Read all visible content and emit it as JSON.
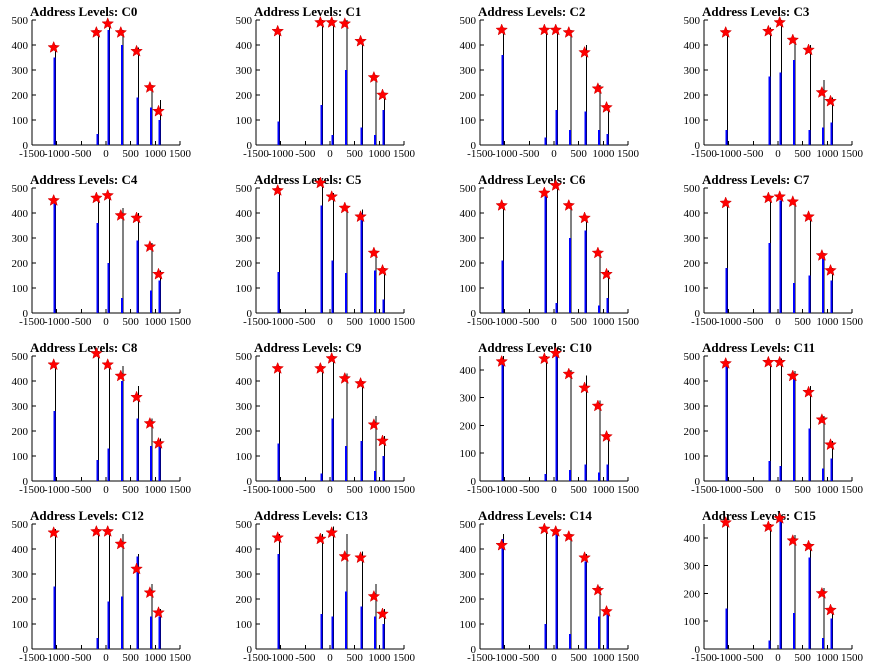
{
  "colors": {
    "histogram": "#000000",
    "fill": "#0000ff",
    "marker": "#ff0000"
  },
  "chart_data": [
    {
      "type": "bar",
      "title": "Address Levels: C0",
      "xlim": [
        -1500,
        1500
      ],
      "ylim": [
        0,
        500
      ],
      "xticks": [
        -1500,
        -1000,
        -500,
        0,
        500,
        1000,
        1500
      ],
      "xtick_labels": [
        "-1500",
        "-1000",
        "-500",
        "0",
        "500",
        "1000",
        "1500"
      ],
      "yticks": [
        0,
        100,
        200,
        300,
        400,
        500
      ],
      "x": [
        -1040,
        -175,
        55,
        320,
        640,
        910,
        1085
      ],
      "peak": [
        400,
        460,
        490,
        460,
        390,
        240,
        180
      ],
      "fill": [
        350,
        45,
        460,
        400,
        190,
        150,
        100
      ],
      "markers": [
        390,
        450,
        485,
        450,
        375,
        230,
        135
      ]
    },
    {
      "type": "bar",
      "title": "Address Levels: C1",
      "xlim": [
        -1500,
        1500
      ],
      "ylim": [
        0,
        500
      ],
      "xticks": [
        -1500,
        -1000,
        -500,
        0,
        500,
        1000,
        1500
      ],
      "xtick_labels": [
        "-1500",
        "-1000",
        "-500",
        "0",
        "500",
        "1000",
        "1500"
      ],
      "yticks": [
        0,
        100,
        200,
        300,
        400,
        500
      ],
      "x": [
        -1040,
        -175,
        55,
        320,
        640,
        910,
        1085
      ],
      "peak": [
        460,
        500,
        500,
        500,
        420,
        280,
        210
      ],
      "fill": [
        95,
        160,
        40,
        300,
        70,
        40,
        140
      ],
      "markers": [
        455,
        490,
        490,
        485,
        415,
        270,
        200
      ]
    },
    {
      "type": "bar",
      "title": "Address Levels: C2",
      "xlim": [
        -1500,
        1500
      ],
      "ylim": [
        0,
        500
      ],
      "xticks": [
        -1500,
        -1000,
        -500,
        0,
        500,
        1000,
        1500
      ],
      "xtick_labels": [
        "-1500",
        "-1000",
        "-500",
        "0",
        "500",
        "1000",
        "1500"
      ],
      "yticks": [
        0,
        100,
        200,
        300,
        400,
        500
      ],
      "x": [
        -1040,
        -175,
        55,
        320,
        640,
        910,
        1085
      ],
      "peak": [
        470,
        460,
        470,
        460,
        400,
        240,
        160
      ],
      "fill": [
        360,
        30,
        140,
        60,
        135,
        60,
        45
      ],
      "markers": [
        460,
        460,
        460,
        450,
        370,
        225,
        150
      ]
    },
    {
      "type": "bar",
      "title": "Address Levels: C3",
      "xlim": [
        -1500,
        1500
      ],
      "ylim": [
        0,
        500
      ],
      "xticks": [
        -1500,
        -1000,
        -500,
        0,
        500,
        1000,
        1500
      ],
      "xtick_labels": [
        "-1500",
        "-1000",
        "-500",
        "0",
        "500",
        "1000",
        "1500"
      ],
      "yticks": [
        0,
        100,
        200,
        300,
        400,
        500
      ],
      "x": [
        -1040,
        -175,
        55,
        320,
        640,
        910,
        1085
      ],
      "peak": [
        460,
        470,
        500,
        430,
        400,
        260,
        190
      ],
      "fill": [
        60,
        275,
        290,
        340,
        60,
        70,
        90
      ],
      "markers": [
        450,
        455,
        490,
        420,
        380,
        210,
        175
      ]
    },
    {
      "type": "bar",
      "title": "Address Levels: C4",
      "xlim": [
        -1500,
        1500
      ],
      "ylim": [
        0,
        500
      ],
      "xticks": [
        -1500,
        -1000,
        -500,
        0,
        500,
        1000,
        1500
      ],
      "xtick_labels": [
        "-1500",
        "-1000",
        "-500",
        "0",
        "500",
        "1000",
        "1500"
      ],
      "yticks": [
        0,
        100,
        200,
        300,
        400,
        500
      ],
      "x": [
        -1040,
        -175,
        55,
        320,
        640,
        910,
        1085
      ],
      "peak": [
        460,
        470,
        480,
        420,
        400,
        280,
        170
      ],
      "fill": [
        440,
        360,
        200,
        60,
        290,
        90,
        130
      ],
      "markers": [
        450,
        460,
        470,
        390,
        380,
        265,
        155
      ]
    },
    {
      "type": "bar",
      "title": "Address Levels: C5",
      "xlim": [
        -1500,
        1500
      ],
      "ylim": [
        0,
        500
      ],
      "xticks": [
        -1500,
        -1000,
        -500,
        0,
        500,
        1000,
        1500
      ],
      "xtick_labels": [
        "-1500",
        "-1000",
        "-500",
        "0",
        "500",
        "1000",
        "1500"
      ],
      "yticks": [
        0,
        100,
        200,
        300,
        400,
        500
      ],
      "x": [
        -1040,
        -175,
        55,
        320,
        640,
        910,
        1085
      ],
      "peak": [
        500,
        530,
        480,
        430,
        415,
        250,
        180
      ],
      "fill": [
        165,
        430,
        210,
        160,
        400,
        170,
        55
      ],
      "markers": [
        490,
        520,
        465,
        420,
        385,
        240,
        170
      ]
    },
    {
      "type": "bar",
      "title": "Address Levels: C6",
      "xlim": [
        -1500,
        1500
      ],
      "ylim": [
        0,
        500
      ],
      "xticks": [
        -1500,
        -1000,
        -500,
        0,
        500,
        1000,
        1500
      ],
      "xtick_labels": [
        "-1500",
        "-1000",
        "-500",
        "0",
        "500",
        "1000",
        "1500"
      ],
      "yticks": [
        0,
        100,
        200,
        300,
        400,
        500
      ],
      "x": [
        -1040,
        -175,
        55,
        320,
        640,
        910,
        1085
      ],
      "peak": [
        440,
        490,
        520,
        440,
        390,
        250,
        170
      ],
      "fill": [
        210,
        470,
        40,
        300,
        330,
        30,
        60
      ],
      "markers": [
        430,
        480,
        510,
        430,
        380,
        240,
        155
      ]
    },
    {
      "type": "bar",
      "title": "Address Levels: C7",
      "xlim": [
        -1500,
        1500
      ],
      "ylim": [
        0,
        500
      ],
      "xticks": [
        -1500,
        -1000,
        -500,
        0,
        500,
        1000,
        1500
      ],
      "xtick_labels": [
        "-1500",
        "-1000",
        "-500",
        "0",
        "500",
        "1000",
        "1500"
      ],
      "yticks": [
        0,
        100,
        200,
        300,
        400,
        500
      ],
      "x": [
        -1040,
        -175,
        55,
        320,
        640,
        910,
        1085
      ],
      "peak": [
        450,
        470,
        470,
        450,
        390,
        240,
        180
      ],
      "fill": [
        180,
        280,
        450,
        120,
        150,
        240,
        130
      ],
      "markers": [
        440,
        460,
        465,
        445,
        385,
        230,
        170
      ]
    },
    {
      "type": "bar",
      "title": "Address Levels: C8",
      "xlim": [
        -1500,
        1500
      ],
      "ylim": [
        0,
        500
      ],
      "xticks": [
        -1500,
        -1000,
        -500,
        0,
        500,
        1000,
        1500
      ],
      "xtick_labels": [
        "-1500",
        "-1000",
        "-500",
        "0",
        "500",
        "1000",
        "1500"
      ],
      "yticks": [
        0,
        100,
        200,
        300,
        400,
        500
      ],
      "x": [
        -1040,
        -175,
        55,
        320,
        640,
        910,
        1085
      ],
      "peak": [
        470,
        520,
        470,
        460,
        380,
        250,
        170
      ],
      "fill": [
        280,
        85,
        130,
        400,
        250,
        140,
        140
      ],
      "markers": [
        465,
        510,
        465,
        420,
        335,
        230,
        150
      ]
    },
    {
      "type": "bar",
      "title": "Address Levels: C9",
      "xlim": [
        -1500,
        1500
      ],
      "ylim": [
        0,
        500
      ],
      "xticks": [
        -1500,
        -1000,
        -500,
        0,
        500,
        1000,
        1500
      ],
      "xtick_labels": [
        "-1500",
        "-1000",
        "-500",
        "0",
        "500",
        "1000",
        "1500"
      ],
      "yticks": [
        0,
        100,
        200,
        300,
        400,
        500
      ],
      "x": [
        -1040,
        -175,
        55,
        320,
        640,
        910,
        1085
      ],
      "peak": [
        460,
        460,
        500,
        430,
        400,
        260,
        180
      ],
      "fill": [
        150,
        30,
        250,
        140,
        160,
        40,
        100
      ],
      "markers": [
        450,
        450,
        490,
        410,
        390,
        225,
        160
      ]
    },
    {
      "type": "bar",
      "title": "Address Levels: C10",
      "xlim": [
        -1500,
        1500
      ],
      "ylim": [
        0,
        450
      ],
      "xticks": [
        -1500,
        -1000,
        -500,
        0,
        500,
        1000,
        1500
      ],
      "xtick_labels": [
        "-1500",
        "-1000",
        "-500",
        "0",
        "500",
        "1000",
        "1500"
      ],
      "yticks": [
        0,
        100,
        200,
        300,
        400
      ],
      "x": [
        -1040,
        -175,
        55,
        320,
        640,
        910,
        1085
      ],
      "peak": [
        450,
        450,
        480,
        400,
        380,
        290,
        170
      ],
      "fill": [
        425,
        25,
        460,
        40,
        60,
        30,
        60
      ],
      "markers": [
        430,
        440,
        460,
        385,
        335,
        270,
        160
      ]
    },
    {
      "type": "bar",
      "title": "Address Levels: C11",
      "xlim": [
        -1500,
        1500
      ],
      "ylim": [
        0,
        500
      ],
      "xticks": [
        -1500,
        -1000,
        -500,
        0,
        500,
        1000,
        1500
      ],
      "xtick_labels": [
        "-1500",
        "-1000",
        "-500",
        "0",
        "500",
        "1000",
        "1500"
      ],
      "yticks": [
        0,
        100,
        200,
        300,
        400,
        500
      ],
      "x": [
        -1040,
        -175,
        55,
        320,
        640,
        910,
        1085
      ],
      "peak": [
        480,
        480,
        490,
        440,
        380,
        260,
        160
      ],
      "fill": [
        470,
        80,
        60,
        420,
        210,
        50,
        90
      ],
      "markers": [
        470,
        475,
        475,
        420,
        355,
        245,
        145
      ]
    },
    {
      "type": "bar",
      "title": "Address Levels: C12",
      "xlim": [
        -1500,
        1500
      ],
      "ylim": [
        0,
        500
      ],
      "xticks": [
        -1500,
        -1000,
        -500,
        0,
        500,
        1000,
        1500
      ],
      "xtick_labels": [
        "-1500",
        "-1000",
        "-500",
        "0",
        "500",
        "1000",
        "1500"
      ],
      "yticks": [
        0,
        100,
        200,
        300,
        400,
        500
      ],
      "x": [
        -1040,
        -175,
        55,
        320,
        640,
        910,
        1085
      ],
      "peak": [
        480,
        480,
        480,
        460,
        380,
        260,
        160
      ],
      "fill": [
        250,
        45,
        190,
        210,
        370,
        130,
        130
      ],
      "markers": [
        465,
        470,
        470,
        420,
        320,
        225,
        145
      ]
    },
    {
      "type": "bar",
      "title": "Address Levels: C13",
      "xlim": [
        -1500,
        1500
      ],
      "ylim": [
        0,
        500
      ],
      "xticks": [
        -1500,
        -1000,
        -500,
        0,
        500,
        1000,
        1500
      ],
      "xtick_labels": [
        "-1500",
        "-1000",
        "-500",
        "0",
        "500",
        "1000",
        "1500"
      ],
      "yticks": [
        0,
        100,
        200,
        300,
        400,
        500
      ],
      "x": [
        -1040,
        -175,
        55,
        320,
        640,
        910,
        1085
      ],
      "peak": [
        460,
        460,
        490,
        460,
        390,
        260,
        160
      ],
      "fill": [
        380,
        140,
        130,
        230,
        170,
        130,
        100
      ],
      "markers": [
        445,
        440,
        465,
        370,
        365,
        210,
        140
      ]
    },
    {
      "type": "bar",
      "title": "Address Levels: C14",
      "xlim": [
        -1500,
        1500
      ],
      "ylim": [
        0,
        500
      ],
      "xticks": [
        -1500,
        -1000,
        -500,
        0,
        500,
        1000,
        1500
      ],
      "xtick_labels": [
        "-1500",
        "-1000",
        "-500",
        "0",
        "500",
        "1000",
        "1500"
      ],
      "yticks": [
        0,
        100,
        200,
        300,
        400,
        500
      ],
      "x": [
        -1040,
        -175,
        55,
        320,
        640,
        910,
        1085
      ],
      "peak": [
        460,
        490,
        480,
        460,
        380,
        250,
        160
      ],
      "fill": [
        440,
        100,
        470,
        60,
        350,
        130,
        140
      ],
      "markers": [
        415,
        480,
        470,
        450,
        365,
        235,
        150
      ]
    },
    {
      "type": "bar",
      "title": "Address Levels: C15",
      "xlim": [
        -1500,
        1500
      ],
      "ylim": [
        0,
        450
      ],
      "xticks": [
        -1500,
        -1000,
        -500,
        0,
        500,
        1000,
        1500
      ],
      "xtick_labels": [
        "-1500",
        "-1000",
        "-500",
        "0",
        "500",
        "1000",
        "1500"
      ],
      "yticks": [
        0,
        100,
        200,
        300,
        400
      ],
      "x": [
        -1040,
        -175,
        55,
        320,
        640,
        910,
        1085
      ],
      "peak": [
        460,
        450,
        480,
        410,
        380,
        220,
        150
      ],
      "fill": [
        145,
        30,
        460,
        130,
        330,
        40,
        110
      ],
      "markers": [
        455,
        440,
        470,
        390,
        370,
        200,
        140
      ]
    }
  ]
}
